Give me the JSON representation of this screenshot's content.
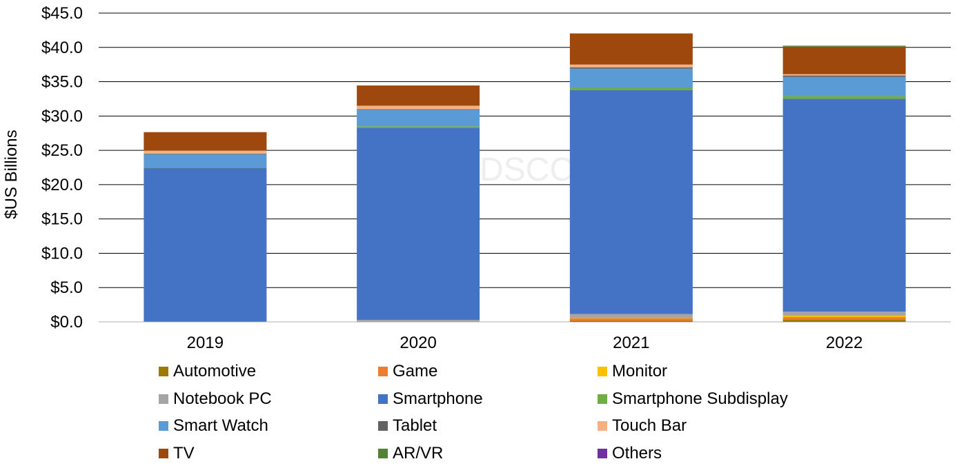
{
  "chart_data": {
    "type": "bar",
    "stacked": true,
    "title": "",
    "xlabel": "",
    "ylabel": "$US Billions",
    "ylim": [
      0,
      45
    ],
    "yticks": [
      "$0.0",
      "$5.0",
      "$10.0",
      "$15.0",
      "$20.0",
      "$25.0",
      "$30.0",
      "$35.0",
      "$40.0",
      "$45.0"
    ],
    "grid": true,
    "legend_position": "bottom",
    "watermark": "DSCC",
    "categories": [
      "2019",
      "2020",
      "2021",
      "2022"
    ],
    "series": [
      {
        "name": "Automotive",
        "color": "#9c7a00",
        "values": [
          0.0,
          0.0,
          0.15,
          0.3
        ]
      },
      {
        "name": "Game",
        "color": "#ed7d31",
        "values": [
          0.0,
          0.0,
          0.35,
          0.4
        ]
      },
      {
        "name": "Monitor",
        "color": "#ffc000",
        "values": [
          0.0,
          0.0,
          0.05,
          0.2
        ]
      },
      {
        "name": "Notebook PC",
        "color": "#a5a5a5",
        "values": [
          0.05,
          0.3,
          0.6,
          0.6
        ]
      },
      {
        "name": "Smartphone",
        "color": "#4472c4",
        "values": [
          22.35,
          28.0,
          32.6,
          31.0
        ]
      },
      {
        "name": "Smartphone Subdisplay",
        "color": "#70ad47",
        "values": [
          0.1,
          0.2,
          0.35,
          0.4
        ]
      },
      {
        "name": "Smart Watch",
        "color": "#5b9bd5",
        "values": [
          1.9,
          2.4,
          2.8,
          2.8
        ]
      },
      {
        "name": "Tablet",
        "color": "#636363",
        "values": [
          0.1,
          0.1,
          0.2,
          0.2
        ]
      },
      {
        "name": "Touch Bar",
        "color": "#f4b183",
        "values": [
          0.45,
          0.5,
          0.4,
          0.2
        ]
      },
      {
        "name": "TV",
        "color": "#9e480e",
        "values": [
          2.7,
          2.95,
          4.5,
          4.0
        ]
      },
      {
        "name": "AR/VR",
        "color": "#548235",
        "values": [
          0.0,
          0.0,
          0.05,
          0.15
        ]
      },
      {
        "name": "Others",
        "color": "#7030a0",
        "values": [
          0.0,
          0.0,
          0.0,
          0.0
        ]
      }
    ]
  }
}
